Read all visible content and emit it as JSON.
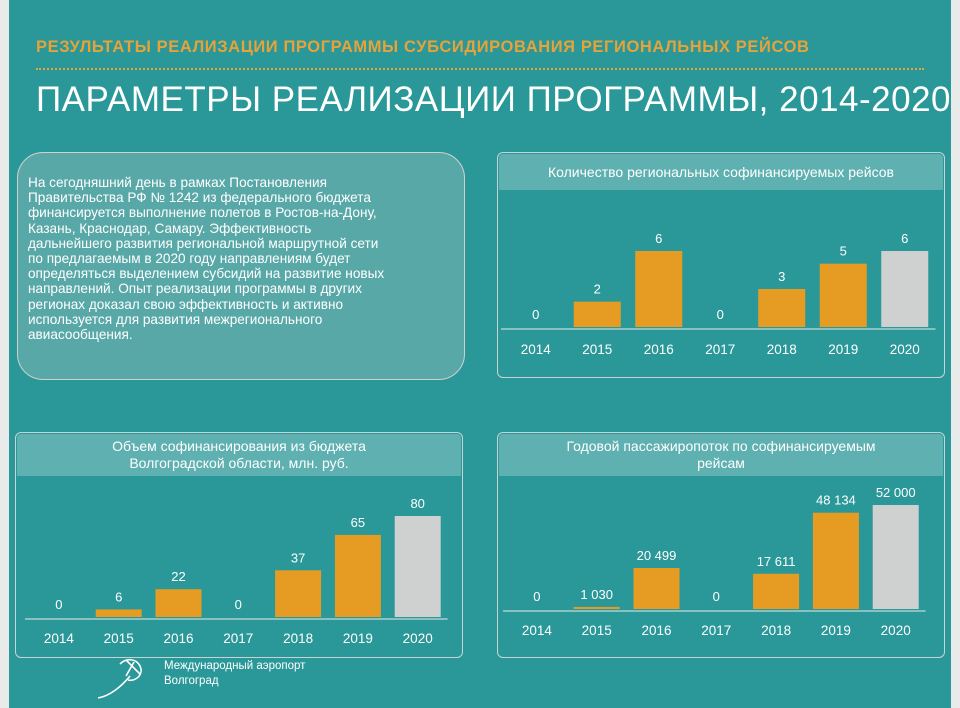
{
  "header": {
    "subtitle": "РЕЗУЛЬТАТЫ РЕАЛИЗАЦИИ ПРОГРАММЫ СУБСИДИРОВАНИЯ РЕГИОНАЛЬНЫХ РЕЙСОВ",
    "title": "ПАРАМЕТРЫ РЕАЛИЗАЦИИ ПРОГРАММЫ, 2014-2020"
  },
  "info_text": [
    "На сегодняшний день в рамках Постановления",
    "Правительства РФ № 1242 из федерального бюджета",
    "финансируется выполнение полетов  в Ростов-на-Дону,",
    "Казань, Краснодар, Самару. Эффективность",
    "дальнейшего развития региональной маршрутной сети",
    "по предлагаемым в 2020 году направлениям  будет",
    "определяться выделением субсидий на развитие новых",
    "направлений. Опыт реализации программы в других",
    "регионах доказал свою эффективность и активно",
    "используется для развития межрегионального",
    "авиасообщения."
  ],
  "colors": {
    "background": "#2a9898",
    "accent": "#e7a23a",
    "bar": "#e69c22",
    "bar_highlight": "#cfd0d0",
    "panel_header": "#5fb0b0"
  },
  "logo": {
    "icon": "airplane-swirl-icon",
    "line1": "Международный аэропорт",
    "line2": "Волгоград"
  },
  "chart_data": [
    {
      "id": "flights",
      "type": "bar",
      "title": "Количество региональных софинансируемых рейсов",
      "categories": [
        "2014",
        "2015",
        "2016",
        "2017",
        "2018",
        "2019",
        "2020"
      ],
      "values": [
        0,
        2,
        6,
        0,
        3,
        5,
        6
      ],
      "labels": [
        "0",
        "2",
        "6",
        "0",
        "3",
        "5",
        "6"
      ],
      "highlight_last": true,
      "xlabel": "",
      "ylabel": ""
    },
    {
      "id": "budget",
      "type": "bar",
      "title": "Объем софинансирования из бюджета Волгоградской области, млн. руб.",
      "title_lines": [
        "Объем софинансирования из бюджета",
        "Волгоградской области, млн. руб."
      ],
      "categories": [
        "2014",
        "2015",
        "2016",
        "2017",
        "2018",
        "2019",
        "2020"
      ],
      "values": [
        0,
        6,
        22,
        0,
        37,
        65,
        80
      ],
      "labels": [
        "0",
        "6",
        "22",
        "0",
        "37",
        "65",
        "80"
      ],
      "highlight_last": true,
      "xlabel": "",
      "ylabel": ""
    },
    {
      "id": "passengers",
      "type": "bar",
      "title": "Годовой пассажиропоток по софинансируемым рейсам",
      "title_lines": [
        "Годовой пассажиропоток по софинансируемым",
        "рейсам"
      ],
      "categories": [
        "2014",
        "2015",
        "2016",
        "2017",
        "2018",
        "2019",
        "2020"
      ],
      "values": [
        0,
        1030,
        20499,
        0,
        17611,
        48134,
        52000
      ],
      "labels": [
        "0",
        "1 030",
        "20 499",
        "0",
        "17 611",
        "48 134",
        "52 000"
      ],
      "highlight_last": true,
      "xlabel": "",
      "ylabel": ""
    }
  ]
}
